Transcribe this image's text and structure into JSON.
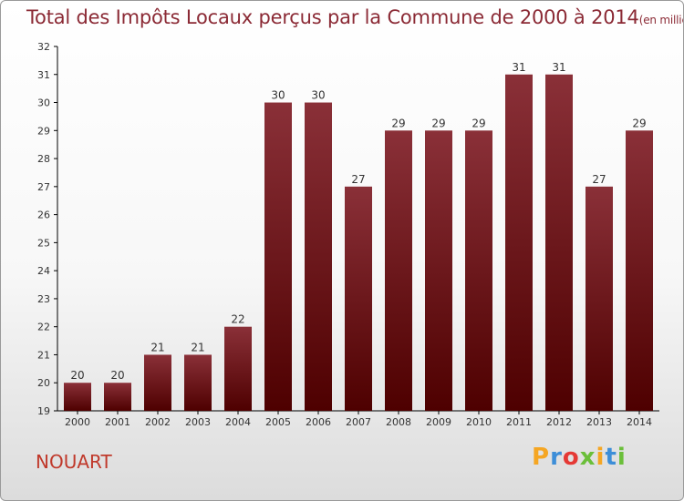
{
  "header": {
    "title": "Total des Impôts Locaux perçus par la Commune de 2000 à 2014",
    "unit": "(en milliers d'€)"
  },
  "commune": "NOUART",
  "logo": {
    "text": "Proxiti",
    "colors": [
      "#f5a623",
      "#3d8ed8",
      "#e53935",
      "#6bbf3a",
      "#f5a623",
      "#3d8ed8",
      "#6bbf3a"
    ]
  },
  "colors": {
    "bar_top": "#8a3038",
    "bar_bottom": "#4e0000"
  },
  "chart_data": {
    "type": "bar",
    "categories": [
      "2000",
      "2001",
      "2002",
      "2003",
      "2004",
      "2005",
      "2006",
      "2007",
      "2008",
      "2009",
      "2010",
      "2011",
      "2012",
      "2013",
      "2014"
    ],
    "values": [
      20,
      20,
      21,
      21,
      22,
      30,
      30,
      27,
      29,
      29,
      29,
      31,
      31,
      27,
      29
    ],
    "title": "Total des Impôts Locaux perçus par la Commune de 2000 à 2014",
    "unit": "(en milliers d'€)",
    "xlabel": "",
    "ylabel": "",
    "ylim": [
      19,
      32
    ],
    "yticks": [
      19,
      20,
      21,
      22,
      23,
      24,
      25,
      26,
      27,
      28,
      29,
      30,
      31,
      32
    ],
    "grid": false,
    "legend": "none"
  }
}
